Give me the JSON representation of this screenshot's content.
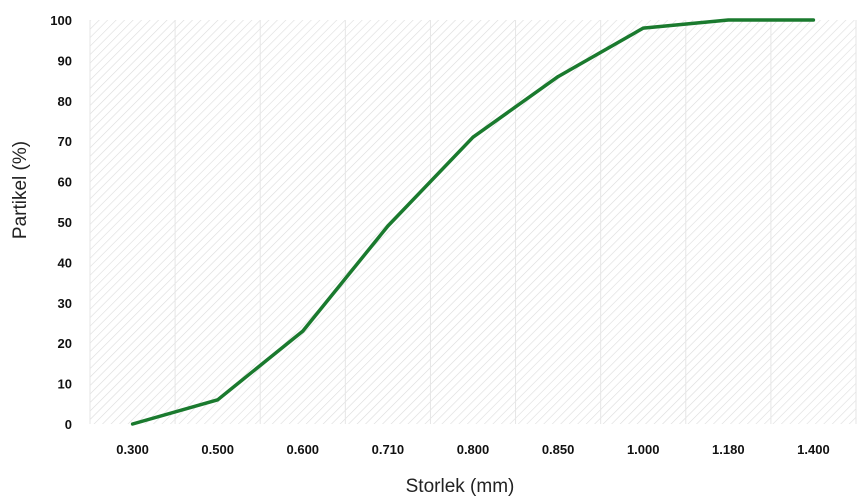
{
  "chart_data": {
    "type": "line",
    "categories": [
      "0.300",
      "0.500",
      "0.600",
      "0.710",
      "0.800",
      "0.850",
      "1.000",
      "1.180",
      "1.400"
    ],
    "series": [
      {
        "values": [
          0,
          6,
          23,
          49,
          71,
          86,
          98,
          100,
          100
        ],
        "color": "#1a7a2e"
      }
    ],
    "xlabel": "Storlek (mm)",
    "ylabel": "Partikel (%)",
    "ylim": [
      0,
      100
    ],
    "yticks": [
      "0",
      "10",
      "20",
      "30",
      "40",
      "50",
      "60",
      "70",
      "80",
      "90",
      "100"
    ],
    "grid": "vertical lines between categories, hatched background",
    "background_pattern": "diagonal hatch"
  }
}
